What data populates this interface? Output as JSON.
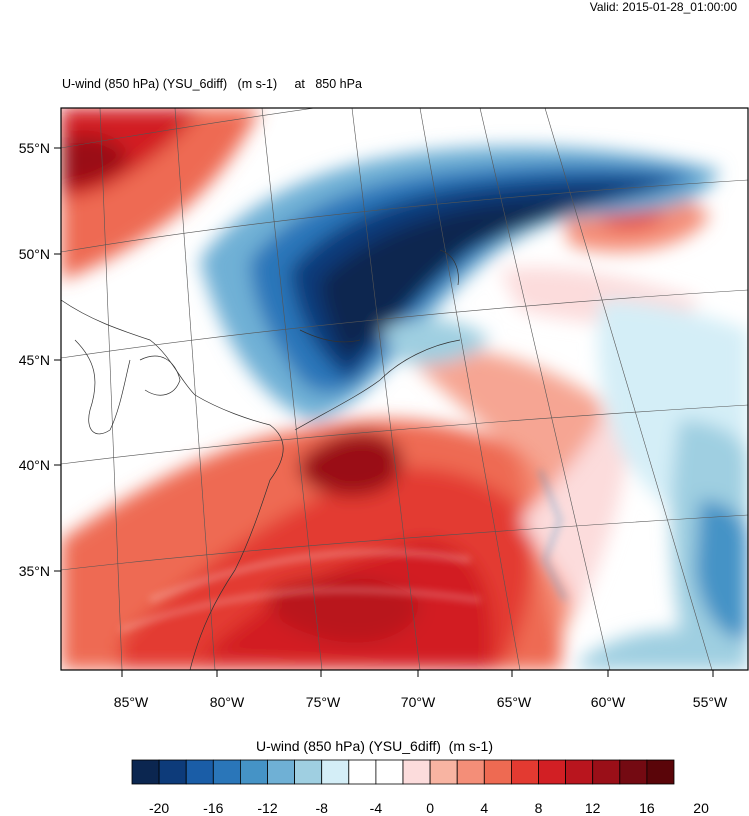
{
  "header": {
    "valid_label": "Valid: 2015-01-28_01:00:00"
  },
  "plot": {
    "title": "U-wind (850 hPa) (YSU_6diff)   (m s-1)     at   850 hPa",
    "lat_labels": [
      "55°N",
      "50°N",
      "45°N",
      "40°N",
      "35°N"
    ],
    "lon_labels": [
      "85°W",
      "80°W",
      "75°W",
      "70°W",
      "65°W",
      "60°W",
      "55°W"
    ]
  },
  "colorbar": {
    "title": "U-wind (850 hPa) (YSU_6diff)  (m s-1)",
    "tick_labels": [
      "-20",
      "-16",
      "-12",
      "-8",
      "-4",
      "0",
      "4",
      "8",
      "12",
      "16",
      "20"
    ],
    "colors": [
      "#0b2650",
      "#0d3b7a",
      "#1a5da7",
      "#2a76b9",
      "#4593c6",
      "#6fb0d5",
      "#9fcfe1",
      "#d4eef7",
      "#ffffff",
      "#ffffff",
      "#fcdcdc",
      "#f8b4a2",
      "#f48e78",
      "#ee6a52",
      "#e33a31",
      "#d21f24",
      "#b9151e",
      "#9a0f18",
      "#740a12",
      "#5a0509"
    ]
  },
  "colors": {
    "strong_negative": "#0b2650",
    "negative": "#4593c6",
    "neutral": "#ffffff",
    "positive": "#e33a31",
    "strong_positive": "#740a12"
  }
}
